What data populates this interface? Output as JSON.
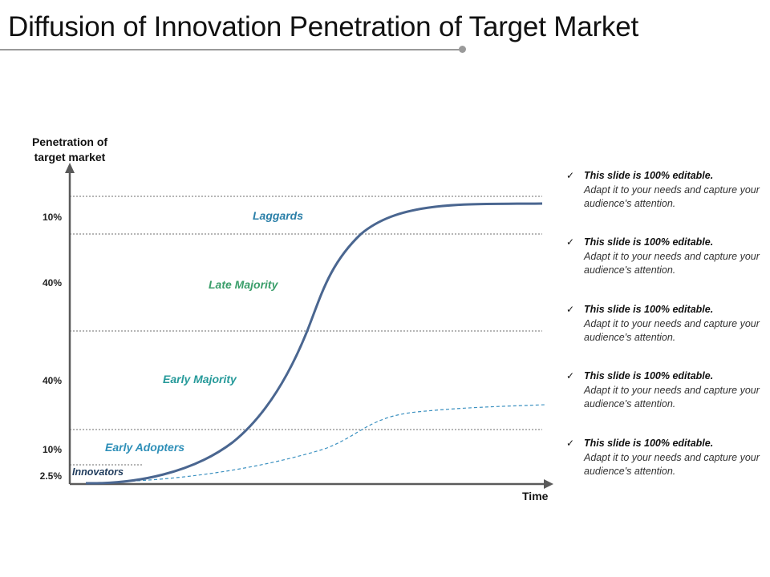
{
  "title": "Diffusion of Innovation Penetration of Target Market",
  "chart_data": {
    "type": "line",
    "y_axis_label": "Penetration of target market",
    "x_axis_label": "Time",
    "segments": [
      {
        "stage": "Innovators",
        "share_label": "2.5%",
        "share": 2.5,
        "color": "#1f3b5c"
      },
      {
        "stage": "Early Adopters",
        "share_label": "10%",
        "share": 10,
        "color": "#2e8fb8"
      },
      {
        "stage": "Early Majority",
        "share_label": "40%",
        "share": 40,
        "color": "#269a9a"
      },
      {
        "stage": "Late Majority",
        "share_label": "40%",
        "share": 40,
        "color": "#3a9e6a"
      },
      {
        "stage": "Laggards",
        "share_label": "10%",
        "share": 10,
        "color": "#2a7fa8"
      }
    ],
    "series": [
      {
        "style": "solid",
        "color": "#4a6690",
        "kind": "cumulative S-curve"
      },
      {
        "style": "dashed",
        "color": "#3a90c0",
        "kind": "secondary curve"
      }
    ],
    "grid": "dotted horizontal boundaries"
  },
  "notes": [
    {
      "check": "✓",
      "head": "This slide is 100% editable.",
      "body": "Adapt it to your needs and capture your audience's attention."
    },
    {
      "check": "✓",
      "head": "This slide is 100% editable.",
      "body": "Adapt it to your needs and capture your audience's attention."
    },
    {
      "check": "✓",
      "head": "This slide is 100% editable.",
      "body": "Adapt it to your needs and capture your audience's attention."
    },
    {
      "check": "✓",
      "head": "This slide is 100% editable.",
      "body": "Adapt it to your needs and capture your audience's attention."
    },
    {
      "check": "✓",
      "head": "This slide is 100% editable.",
      "body": "Adapt it to your needs and capture your audience's attention."
    }
  ]
}
